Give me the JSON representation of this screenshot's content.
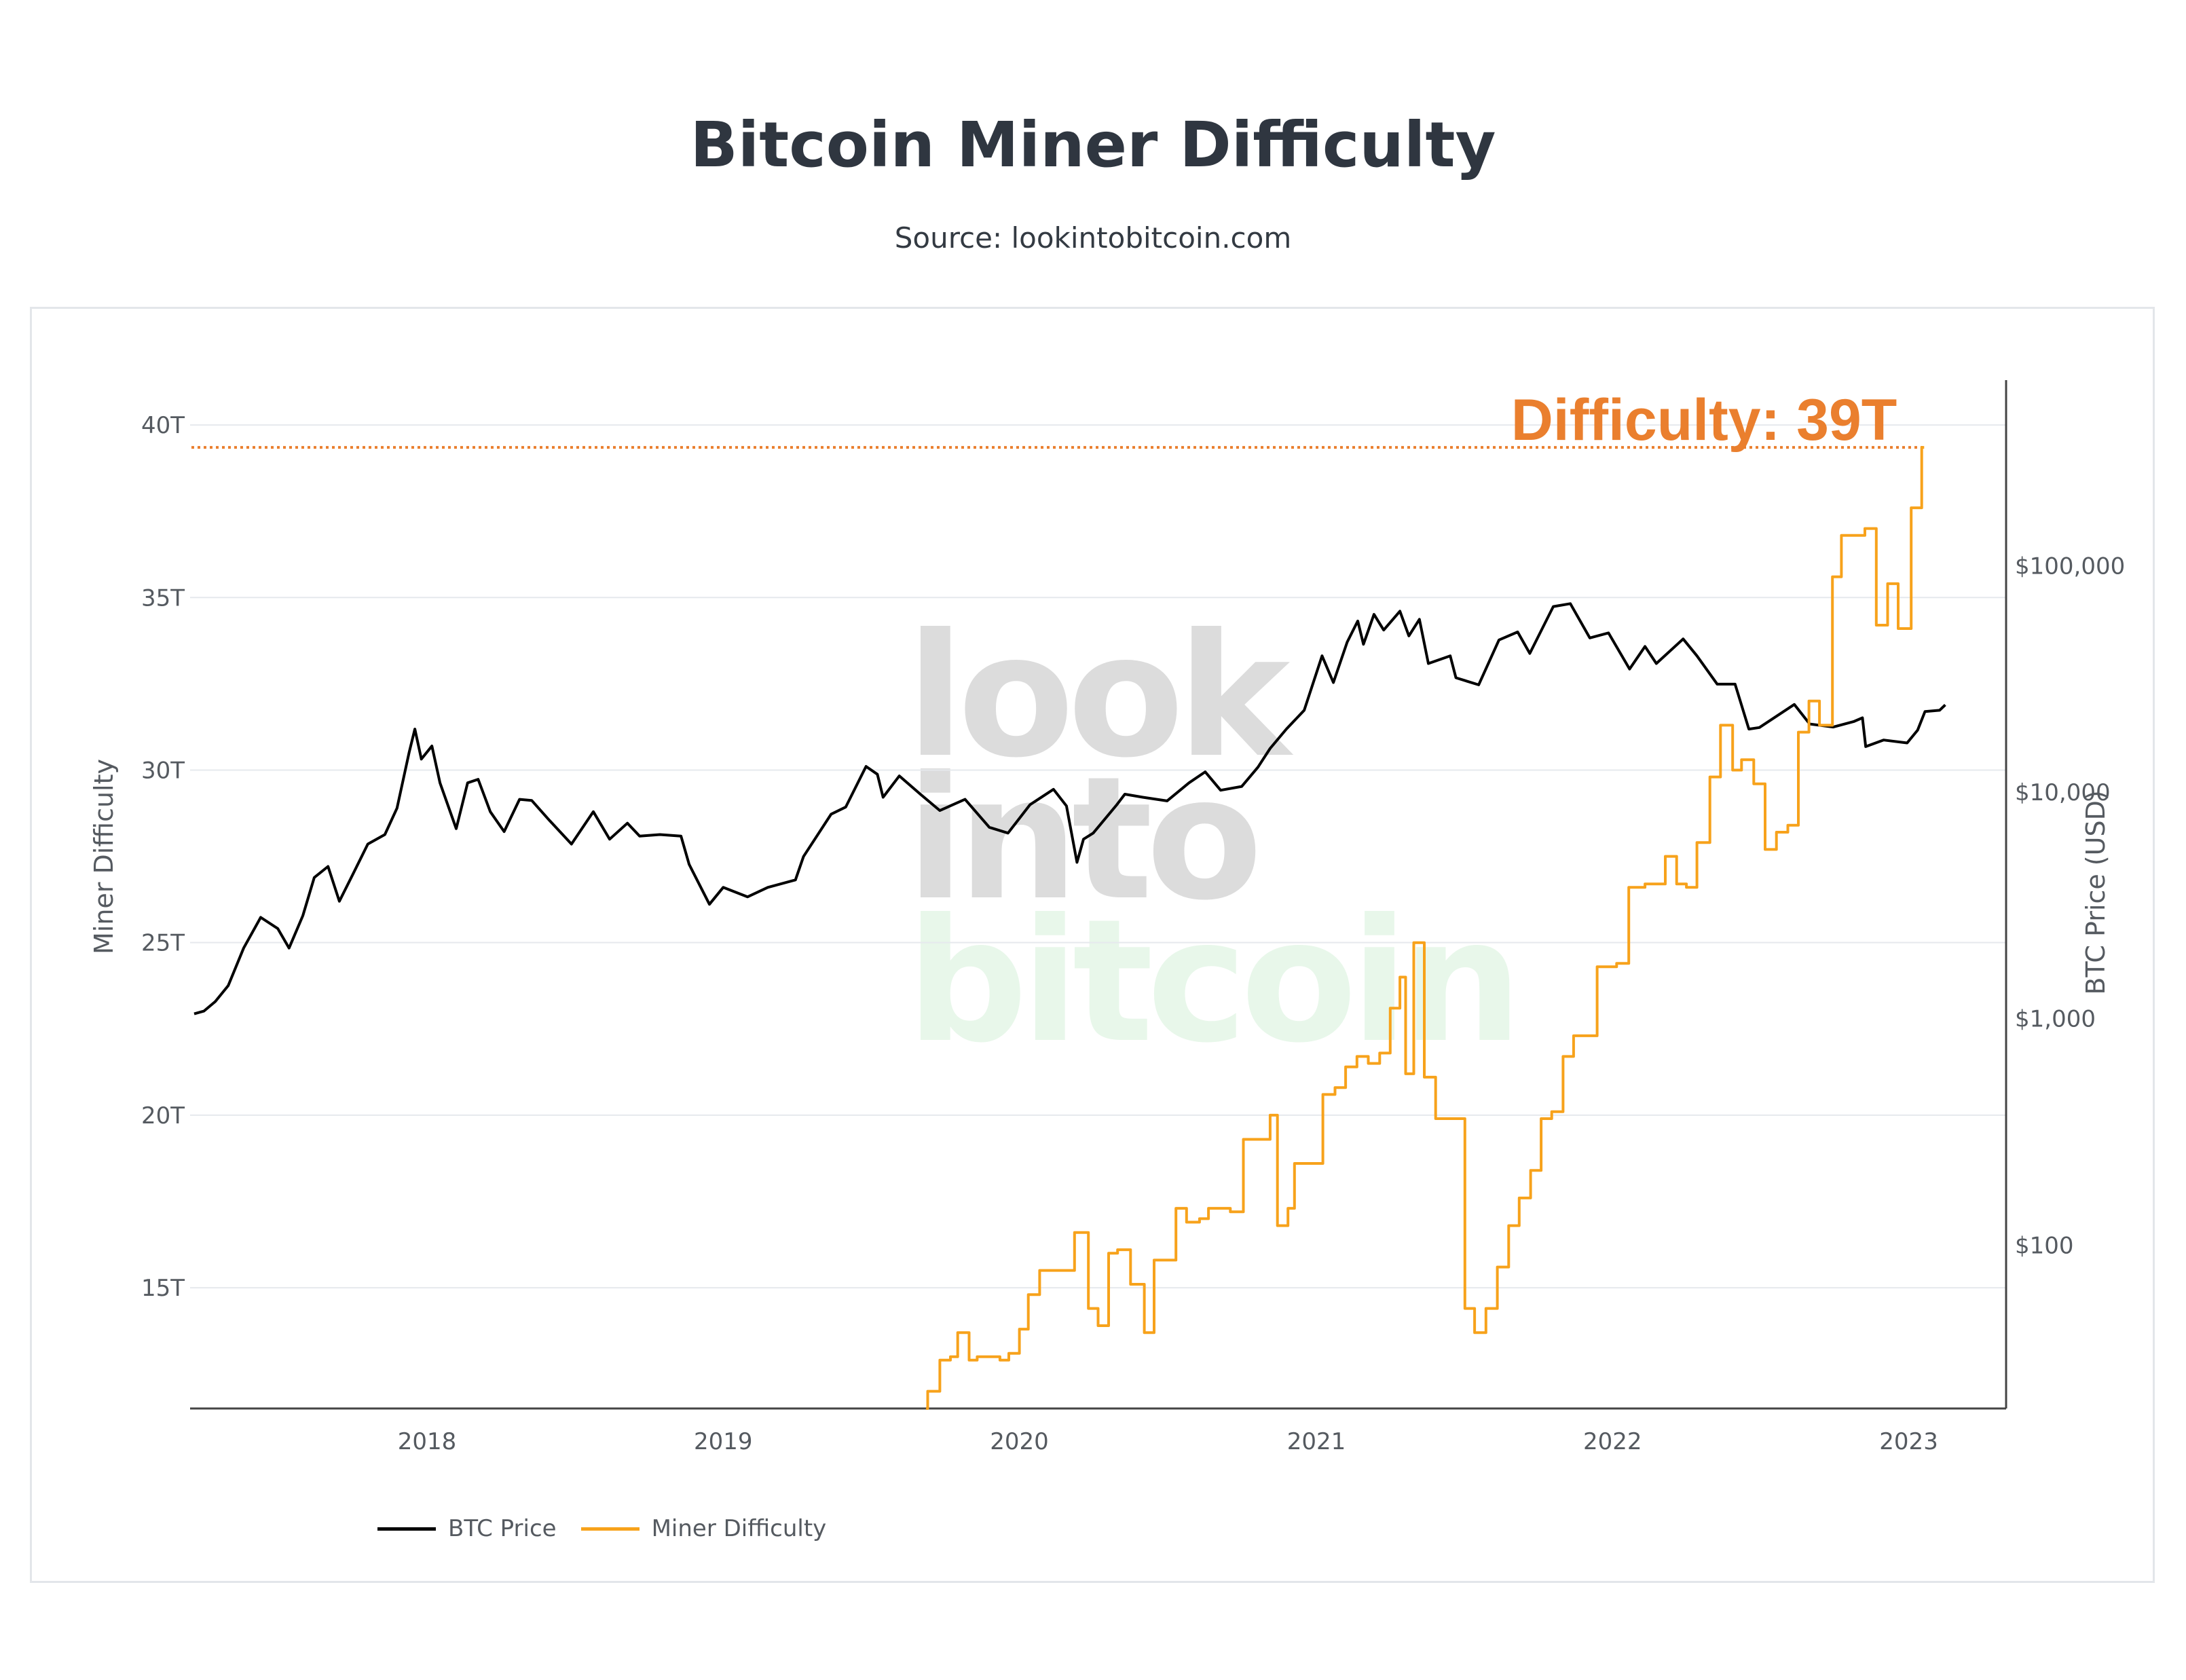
{
  "header": {
    "title": "Bitcoin Miner Difficulty",
    "subtitle": "Source: lookintobitcoin.com"
  },
  "annotation": {
    "text": "Difficulty: 39T",
    "color": "#ea7f2e"
  },
  "watermark": {
    "lines": [
      "look",
      "into",
      "bitcoin"
    ]
  },
  "legend": [
    {
      "label": "BTC Price",
      "color": "#000000"
    },
    {
      "label": "Miner Difficulty",
      "color": "#f7a21b"
    }
  ],
  "chart_data": {
    "type": "line",
    "title": "Bitcoin Miner Difficulty",
    "subtitle": "Source: lookintobitcoin.com",
    "x_ticks": [
      "2018",
      "2019",
      "2020",
      "2021",
      "2022",
      "2023"
    ],
    "x_range": [
      "2017-03-15",
      "2023-05-01"
    ],
    "y_left": {
      "label": "Miner Difficulty",
      "ticks": [
        "15T",
        "20T",
        "25T",
        "30T",
        "35T",
        "40T"
      ],
      "tick_values": [
        15,
        20,
        25,
        30,
        35,
        40
      ],
      "range": [
        11.5,
        41.3
      ],
      "unit": "T"
    },
    "y_right": {
      "label": "BTC Price (USD)",
      "scale": "log",
      "ticks": [
        "$100",
        "$1,000",
        "$10,000",
        "$100,000"
      ],
      "tick_values": [
        100,
        1000,
        10000,
        100000
      ],
      "range": [
        19,
        660000
      ]
    },
    "reference_line": {
      "value": 39.35,
      "axis": "left",
      "style": "dotted",
      "color": "#ea7f2e"
    },
    "grid": true,
    "legend_position": "bottom-left",
    "series": [
      {
        "name": "BTC Price",
        "axis": "right",
        "color": "#000000",
        "points": [
          [
            "2017-03-20",
            1050
          ],
          [
            "2017-04-01",
            1080
          ],
          [
            "2017-04-15",
            1190
          ],
          [
            "2017-05-01",
            1400
          ],
          [
            "2017-05-20",
            2050
          ],
          [
            "2017-06-10",
            2800
          ],
          [
            "2017-07-01",
            2500
          ],
          [
            "2017-07-15",
            2050
          ],
          [
            "2017-08-01",
            2850
          ],
          [
            "2017-08-15",
            4200
          ],
          [
            "2017-09-01",
            4700
          ],
          [
            "2017-09-15",
            3300
          ],
          [
            "2017-10-01",
            4300
          ],
          [
            "2017-10-20",
            5900
          ],
          [
            "2017-11-10",
            6500
          ],
          [
            "2017-11-25",
            8500
          ],
          [
            "2017-12-10",
            15000
          ],
          [
            "2017-12-17",
            19000
          ],
          [
            "2017-12-25",
            14000
          ],
          [
            "2018-01-07",
            16000
          ],
          [
            "2018-01-17",
            11000
          ],
          [
            "2018-02-06",
            6900
          ],
          [
            "2018-02-20",
            11000
          ],
          [
            "2018-03-05",
            11400
          ],
          [
            "2018-03-20",
            8200
          ],
          [
            "2018-04-06",
            6700
          ],
          [
            "2018-04-25",
            9300
          ],
          [
            "2018-05-10",
            9200
          ],
          [
            "2018-06-01",
            7500
          ],
          [
            "2018-06-28",
            5900
          ],
          [
            "2018-07-25",
            8200
          ],
          [
            "2018-08-14",
            6200
          ],
          [
            "2018-09-05",
            7300
          ],
          [
            "2018-09-20",
            6400
          ],
          [
            "2018-10-15",
            6500
          ],
          [
            "2018-11-10",
            6400
          ],
          [
            "2018-11-20",
            4800
          ],
          [
            "2018-12-15",
            3200
          ],
          [
            "2019-01-01",
            3800
          ],
          [
            "2019-01-31",
            3450
          ],
          [
            "2019-02-25",
            3800
          ],
          [
            "2019-03-31",
            4100
          ],
          [
            "2019-04-10",
            5200
          ],
          [
            "2019-05-14",
            8000
          ],
          [
            "2019-06-01",
            8600
          ],
          [
            "2019-06-26",
            13000
          ],
          [
            "2019-07-10",
            12000
          ],
          [
            "2019-07-17",
            9500
          ],
          [
            "2019-08-06",
            11800
          ],
          [
            "2019-09-01",
            9800
          ],
          [
            "2019-09-25",
            8300
          ],
          [
            "2019-10-26",
            9300
          ],
          [
            "2019-11-25",
            7000
          ],
          [
            "2019-12-18",
            6600
          ],
          [
            "2020-01-14",
            8800
          ],
          [
            "2020-02-12",
            10300
          ],
          [
            "2020-02-28",
            8700
          ],
          [
            "2020-03-12",
            4900
          ],
          [
            "2020-03-20",
            6200
          ],
          [
            "2020-04-01",
            6600
          ],
          [
            "2020-04-30",
            8800
          ],
          [
            "2020-05-10",
            9800
          ],
          [
            "2020-06-01",
            9500
          ],
          [
            "2020-07-01",
            9150
          ],
          [
            "2020-07-28",
            11000
          ],
          [
            "2020-08-17",
            12300
          ],
          [
            "2020-09-05",
            10200
          ],
          [
            "2020-10-01",
            10600
          ],
          [
            "2020-10-21",
            12900
          ],
          [
            "2020-11-05",
            15600
          ],
          [
            "2020-11-25",
            19000
          ],
          [
            "2020-12-17",
            23000
          ],
          [
            "2021-01-08",
            40000
          ],
          [
            "2021-01-22",
            30500
          ],
          [
            "2021-02-08",
            46000
          ],
          [
            "2021-02-21",
            57000
          ],
          [
            "2021-02-28",
            45000
          ],
          [
            "2021-03-13",
            61000
          ],
          [
            "2021-03-25",
            52000
          ],
          [
            "2021-04-14",
            63000
          ],
          [
            "2021-04-25",
            49000
          ],
          [
            "2021-05-08",
            58000
          ],
          [
            "2021-05-19",
            37000
          ],
          [
            "2021-06-15",
            40000
          ],
          [
            "2021-06-22",
            32000
          ],
          [
            "2021-07-20",
            29800
          ],
          [
            "2021-08-14",
            47000
          ],
          [
            "2021-09-06",
            51000
          ],
          [
            "2021-09-21",
            41000
          ],
          [
            "2021-10-20",
            66000
          ],
          [
            "2021-11-10",
            68000
          ],
          [
            "2021-12-04",
            48000
          ],
          [
            "2021-12-27",
            50500
          ],
          [
            "2022-01-22",
            35000
          ],
          [
            "2022-02-10",
            44000
          ],
          [
            "2022-02-24",
            37000
          ],
          [
            "2022-03-29",
            47500
          ],
          [
            "2022-04-15",
            40000
          ],
          [
            "2022-05-10",
            30000
          ],
          [
            "2022-06-01",
            30000
          ],
          [
            "2022-06-18",
            19000
          ],
          [
            "2022-07-01",
            19300
          ],
          [
            "2022-08-13",
            24400
          ],
          [
            "2022-09-01",
            20000
          ],
          [
            "2022-09-30",
            19400
          ],
          [
            "2022-10-25",
            20500
          ],
          [
            "2022-11-05",
            21300
          ],
          [
            "2022-11-09",
            15900
          ],
          [
            "2022-12-01",
            17000
          ],
          [
            "2022-12-30",
            16500
          ],
          [
            "2023-01-12",
            18800
          ],
          [
            "2023-01-21",
            22700
          ],
          [
            "2023-02-08",
            23000
          ],
          [
            "2023-02-15",
            24300
          ]
        ]
      },
      {
        "name": "Miner Difficulty",
        "axis": "left",
        "color": "#f7a21b",
        "step": true,
        "points": [
          [
            "2019-09-08",
            11.5
          ],
          [
            "2019-09-10",
            12.0
          ],
          [
            "2019-09-25",
            12.9
          ],
          [
            "2019-10-08",
            13.0
          ],
          [
            "2019-10-17",
            13.7
          ],
          [
            "2019-10-31",
            12.9
          ],
          [
            "2019-11-10",
            13.0
          ],
          [
            "2019-11-22",
            13.0
          ],
          [
            "2019-12-08",
            12.9
          ],
          [
            "2019-12-19",
            13.1
          ],
          [
            "2020-01-01",
            13.8
          ],
          [
            "2020-01-12",
            14.8
          ],
          [
            "2020-01-26",
            15.5
          ],
          [
            "2020-02-08",
            15.5
          ],
          [
            "2020-02-21",
            15.5
          ],
          [
            "2020-03-09",
            16.6
          ],
          [
            "2020-03-26",
            14.4
          ],
          [
            "2020-04-07",
            13.9
          ],
          [
            "2020-04-20",
            16.0
          ],
          [
            "2020-05-01",
            16.1
          ],
          [
            "2020-05-17",
            15.1
          ],
          [
            "2020-06-03",
            13.7
          ],
          [
            "2020-06-15",
            15.8
          ],
          [
            "2020-06-27",
            15.8
          ],
          [
            "2020-07-12",
            17.3
          ],
          [
            "2020-07-25",
            16.9
          ],
          [
            "2020-08-10",
            17.0
          ],
          [
            "2020-08-21",
            17.3
          ],
          [
            "2020-09-06",
            17.3
          ],
          [
            "2020-09-17",
            17.2
          ],
          [
            "2020-10-03",
            19.3
          ],
          [
            "2020-10-27",
            19.3
          ],
          [
            "2020-11-05",
            20.0
          ],
          [
            "2020-11-14",
            16.8
          ],
          [
            "2020-11-27",
            17.3
          ],
          [
            "2020-12-05",
            18.6
          ],
          [
            "2020-12-18",
            18.6
          ],
          [
            "2021-01-01",
            18.6
          ],
          [
            "2021-01-09",
            20.6
          ],
          [
            "2021-01-24",
            20.8
          ],
          [
            "2021-02-06",
            21.4
          ],
          [
            "2021-02-20",
            21.7
          ],
          [
            "2021-03-06",
            21.5
          ],
          [
            "2021-03-20",
            21.8
          ],
          [
            "2021-04-02",
            23.1
          ],
          [
            "2021-04-14",
            24.0
          ],
          [
            "2021-04-21",
            21.2
          ],
          [
            "2021-05-01",
            25.0
          ],
          [
            "2021-05-14",
            21.1
          ],
          [
            "2021-05-28",
            19.9
          ],
          [
            "2021-06-12",
            19.9
          ],
          [
            "2021-07-03",
            14.4
          ],
          [
            "2021-07-15",
            13.7
          ],
          [
            "2021-07-29",
            14.4
          ],
          [
            "2021-08-12",
            15.6
          ],
          [
            "2021-08-26",
            16.8
          ],
          [
            "2021-09-08",
            17.6
          ],
          [
            "2021-09-22",
            18.4
          ],
          [
            "2021-10-05",
            19.9
          ],
          [
            "2021-10-18",
            20.1
          ],
          [
            "2021-11-01",
            21.7
          ],
          [
            "2021-11-14",
            22.3
          ],
          [
            "2021-11-30",
            22.3
          ],
          [
            "2021-12-13",
            24.3
          ],
          [
            "2022-01-06",
            24.4
          ],
          [
            "2022-01-21",
            26.6
          ],
          [
            "2022-02-10",
            26.7
          ],
          [
            "2022-03-07",
            27.5
          ],
          [
            "2022-03-21",
            26.7
          ],
          [
            "2022-04-02",
            26.6
          ],
          [
            "2022-04-15",
            27.9
          ],
          [
            "2022-05-01",
            29.8
          ],
          [
            "2022-05-14",
            31.3
          ],
          [
            "2022-05-29",
            30.0
          ],
          [
            "2022-06-09",
            30.3
          ],
          [
            "2022-06-24",
            29.6
          ],
          [
            "2022-07-08",
            27.7
          ],
          [
            "2022-07-22",
            28.2
          ],
          [
            "2022-08-05",
            28.4
          ],
          [
            "2022-08-18",
            31.1
          ],
          [
            "2022-08-31",
            32.0
          ],
          [
            "2022-09-13",
            31.3
          ],
          [
            "2022-09-29",
            35.6
          ],
          [
            "2022-10-10",
            36.8
          ],
          [
            "2022-10-24",
            36.8
          ],
          [
            "2022-11-08",
            37.0
          ],
          [
            "2022-11-22",
            34.2
          ],
          [
            "2022-12-06",
            35.4
          ],
          [
            "2022-12-19",
            34.1
          ],
          [
            "2023-01-04",
            37.6
          ],
          [
            "2023-01-17",
            39.35
          ],
          [
            "2023-01-20",
            39.35
          ]
        ]
      }
    ]
  }
}
